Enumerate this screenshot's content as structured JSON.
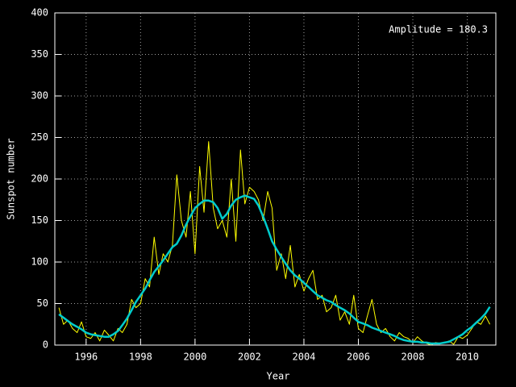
{
  "chart_data": {
    "type": "line",
    "xlabel": "Year",
    "ylabel": "Sunspot number",
    "annotation": "Amplitude = 180.3",
    "x": [
      1995.0,
      1995.17,
      1995.33,
      1995.5,
      1995.67,
      1995.83,
      1996.0,
      1996.17,
      1996.33,
      1996.5,
      1996.67,
      1996.83,
      1997.0,
      1997.17,
      1997.33,
      1997.5,
      1997.67,
      1997.83,
      1998.0,
      1998.17,
      1998.33,
      1998.5,
      1998.67,
      1998.83,
      1999.0,
      1999.17,
      1999.33,
      1999.5,
      1999.67,
      1999.83,
      2000.0,
      2000.17,
      2000.33,
      2000.5,
      2000.67,
      2000.83,
      2001.0,
      2001.17,
      2001.33,
      2001.5,
      2001.67,
      2001.83,
      2002.0,
      2002.17,
      2002.33,
      2002.5,
      2002.67,
      2002.83,
      2003.0,
      2003.17,
      2003.33,
      2003.5,
      2003.67,
      2003.83,
      2004.0,
      2004.17,
      2004.33,
      2004.5,
      2004.67,
      2004.83,
      2005.0,
      2005.17,
      2005.33,
      2005.5,
      2005.67,
      2005.83,
      2006.0,
      2006.17,
      2006.33,
      2006.5,
      2006.67,
      2006.83,
      2007.0,
      2007.17,
      2007.33,
      2007.5,
      2007.67,
      2007.83,
      2008.0,
      2008.17,
      2008.33,
      2008.5,
      2008.67,
      2008.83,
      2009.0,
      2009.17,
      2009.33,
      2009.5,
      2009.67,
      2009.83,
      2010.0,
      2010.17,
      2010.33,
      2010.5,
      2010.67,
      2010.83
    ],
    "series": [
      {
        "color": "#ffff00",
        "width": 1,
        "values": [
          45,
          25,
          30,
          20,
          15,
          28,
          10,
          8,
          15,
          5,
          18,
          12,
          5,
          20,
          15,
          25,
          55,
          45,
          50,
          80,
          70,
          130,
          85,
          110,
          100,
          120,
          205,
          150,
          130,
          185,
          110,
          215,
          160,
          245,
          165,
          140,
          150,
          130,
          200,
          125,
          235,
          170,
          190,
          185,
          175,
          150,
          185,
          165,
          90,
          110,
          80,
          120,
          70,
          85,
          65,
          80,
          90,
          55,
          60,
          40,
          45,
          60,
          30,
          40,
          25,
          60,
          20,
          15,
          35,
          55,
          25,
          15,
          20,
          10,
          5,
          15,
          10,
          8,
          3,
          10,
          5,
          2,
          0,
          3,
          2,
          3,
          5,
          1,
          10,
          8,
          12,
          20,
          28,
          25,
          35,
          25
        ]
      },
      {
        "color": "#00cccc",
        "width": 2.5,
        "values": [
          37,
          33,
          29,
          25,
          22,
          19,
          15,
          13,
          12,
          11,
          10,
          10,
          13,
          17,
          24,
          32,
          42,
          52,
          60,
          68,
          78,
          88,
          95,
          102,
          110,
          118,
          122,
          132,
          145,
          155,
          165,
          170,
          174,
          174,
          172,
          165,
          152,
          158,
          168,
          175,
          178,
          180,
          178,
          176,
          168,
          155,
          140,
          125,
          115,
          106,
          98,
          90,
          84,
          80,
          75,
          70,
          65,
          60,
          57,
          54,
          52,
          48,
          45,
          42,
          38,
          33,
          28,
          26,
          24,
          21,
          19,
          17,
          15,
          13,
          11,
          8,
          6,
          5,
          4,
          4,
          3,
          3,
          2,
          2,
          2,
          3,
          4,
          7,
          10,
          13,
          18,
          22,
          27,
          32,
          38,
          46
        ]
      }
    ],
    "xlim": [
      1994.85,
      2011.05
    ],
    "ylim": [
      0,
      400
    ],
    "xticks": [
      1996,
      1998,
      2000,
      2002,
      2004,
      2006,
      2008,
      2010
    ],
    "yticks": [
      0,
      50,
      100,
      150,
      200,
      250,
      300,
      350,
      400
    ],
    "grid": true
  }
}
